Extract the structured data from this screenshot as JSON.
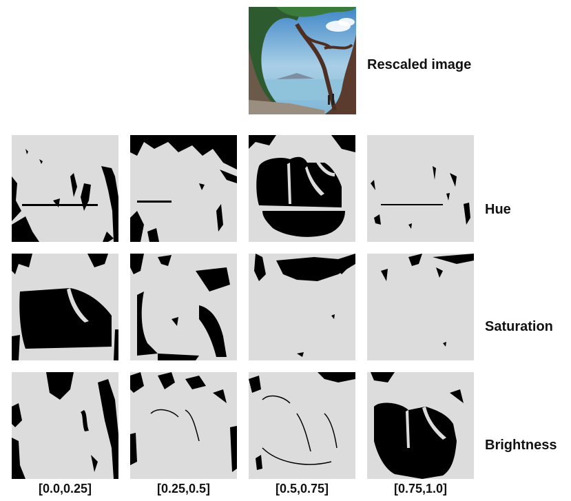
{
  "rescaled_label": "Rescaled image",
  "row_labels": [
    "Hue",
    "Saturation",
    "Brightness"
  ],
  "column_labels": [
    "[0.0,0.25]",
    "[0.25,0.5]",
    "[0.5,0.75]",
    "[0.75,1.0]"
  ]
}
